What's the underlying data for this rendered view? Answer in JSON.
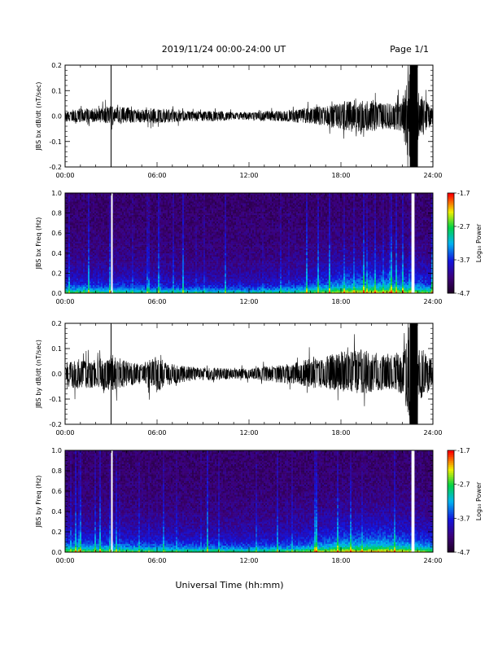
{
  "header": {
    "title": "2019/11/24  00:00-24:00 UT",
    "page": "Page 1/1"
  },
  "xlabel": "Universal Time (hh:mm)",
  "colorbar_label": "Log₁₀ Power",
  "chart_data": [
    {
      "type": "line",
      "ylabel": "JBS bx dB/dt (nT/sec)",
      "xlim": [
        0,
        24
      ],
      "ylim": [
        -0.2,
        0.2
      ],
      "x_ticks": [
        "00:00",
        "06:00",
        "12:00",
        "18:00",
        "24:00"
      ],
      "y_ticks": [
        "-0.2",
        "-0.1",
        "0.0",
        "0.1",
        "0.2"
      ],
      "envelope": {
        "x": [
          0,
          1,
          2,
          3,
          4,
          5,
          6,
          7,
          8,
          9,
          10,
          11,
          12,
          13,
          14,
          15,
          16,
          17,
          18,
          19,
          20,
          21,
          22,
          22.5,
          23,
          24
        ],
        "min": [
          -0.02,
          -0.025,
          -0.025,
          -0.03,
          -0.03,
          -0.025,
          -0.03,
          -0.025,
          -0.02,
          -0.02,
          -0.02,
          -0.015,
          -0.015,
          -0.02,
          -0.02,
          -0.025,
          -0.03,
          -0.04,
          -0.05,
          -0.07,
          -0.06,
          -0.05,
          -0.06,
          -0.2,
          -0.1,
          -0.03
        ],
        "max": [
          0.02,
          0.03,
          0.03,
          0.04,
          0.035,
          0.025,
          0.03,
          0.025,
          0.02,
          0.02,
          0.02,
          0.015,
          0.015,
          0.02,
          0.02,
          0.025,
          0.035,
          0.04,
          0.05,
          0.07,
          0.06,
          0.05,
          0.06,
          0.2,
          0.1,
          0.03
        ]
      },
      "data_gaps_hours": [
        [
          22.5,
          23.0
        ]
      ],
      "marker_line_hour": 3.0
    },
    {
      "type": "heatmap",
      "ylabel": "JBS bx Freq (Hz)",
      "xlim": [
        0,
        24
      ],
      "ylim": [
        0.0,
        1.0
      ],
      "x_ticks": [
        "00:00",
        "06:00",
        "12:00",
        "18:00",
        "24:00"
      ],
      "y_ticks": [
        "0.0",
        "0.2",
        "0.4",
        "0.6",
        "0.8",
        "1.0"
      ],
      "color_range": [
        -4.7,
        -1.7
      ],
      "colorbar_ticks": [
        "-1.7",
        "-2.7",
        "-3.7",
        "-4.7"
      ],
      "activity_hours": [
        0,
        3,
        6,
        9,
        12,
        15,
        18,
        21,
        24
      ],
      "activity_level": [
        0.5,
        0.45,
        0.4,
        0.35,
        0.35,
        0.45,
        0.75,
        0.8,
        0.55
      ],
      "data_gaps_hours": [
        [
          3.0,
          3.1
        ],
        [
          22.6,
          22.8
        ]
      ]
    },
    {
      "type": "line",
      "ylabel": "JBS by dB/dt (nT/sec)",
      "xlim": [
        0,
        24
      ],
      "ylim": [
        -0.2,
        0.2
      ],
      "x_ticks": [
        "00:00",
        "06:00",
        "12:00",
        "18:00",
        "24:00"
      ],
      "y_ticks": [
        "-0.2",
        "-0.1",
        "0.0",
        "0.1",
        "0.2"
      ],
      "envelope": {
        "x": [
          0,
          1,
          2,
          3,
          4,
          5,
          6,
          7,
          8,
          9,
          10,
          11,
          12,
          13,
          14,
          15,
          16,
          17,
          18,
          19,
          20,
          21,
          22,
          22.5,
          23,
          24
        ],
        "min": [
          -0.05,
          -0.06,
          -0.055,
          -0.07,
          -0.05,
          -0.04,
          -0.08,
          -0.04,
          -0.03,
          -0.025,
          -0.025,
          -0.02,
          -0.02,
          -0.03,
          -0.035,
          -0.04,
          -0.055,
          -0.06,
          -0.07,
          -0.08,
          -0.075,
          -0.06,
          -0.08,
          -0.2,
          -0.12,
          -0.05
        ],
        "max": [
          0.05,
          0.06,
          0.055,
          0.08,
          0.05,
          0.04,
          0.07,
          0.04,
          0.03,
          0.025,
          0.025,
          0.02,
          0.02,
          0.03,
          0.035,
          0.045,
          0.06,
          0.07,
          0.09,
          0.1,
          0.09,
          0.07,
          0.08,
          0.2,
          0.12,
          0.05
        ]
      },
      "data_gaps_hours": [
        [
          22.5,
          23.0
        ]
      ],
      "marker_line_hour": 3.0
    },
    {
      "type": "heatmap",
      "ylabel": "JBS by Freq (Hz)",
      "xlim": [
        0,
        24
      ],
      "ylim": [
        0.0,
        1.0
      ],
      "x_ticks": [
        "00:00",
        "06:00",
        "12:00",
        "18:00",
        "24:00"
      ],
      "y_ticks": [
        "0.0",
        "0.2",
        "0.4",
        "0.6",
        "0.8",
        "1.0"
      ],
      "color_range": [
        -4.7,
        -1.7
      ],
      "colorbar_ticks": [
        "-1.7",
        "-2.7",
        "-3.7",
        "-4.7"
      ],
      "activity_hours": [
        0,
        3,
        6,
        9,
        12,
        15,
        18,
        21,
        24
      ],
      "activity_level": [
        0.6,
        0.55,
        0.5,
        0.45,
        0.45,
        0.5,
        0.8,
        0.85,
        0.6
      ],
      "data_gaps_hours": [
        [
          3.0,
          3.1
        ],
        [
          22.6,
          22.8
        ]
      ]
    }
  ]
}
